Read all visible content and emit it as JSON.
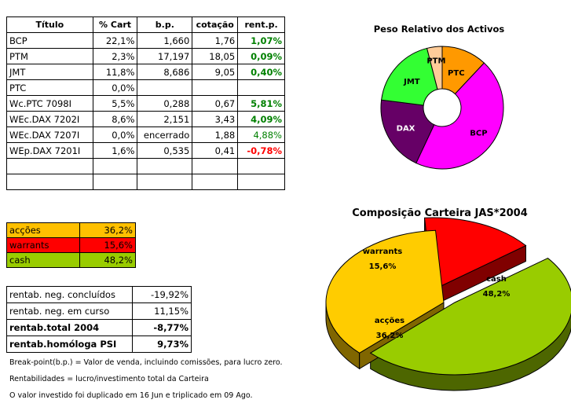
{
  "holdings": {
    "headers": [
      "Título",
      "% Cart",
      "b.p.",
      "cotação",
      "rent.p."
    ],
    "rows": [
      {
        "titulo": "BCP",
        "cart": "22,1%",
        "bp": "1,660",
        "cotacao": "1,76",
        "rent": "1,07%",
        "rent_style": "pos-bold"
      },
      {
        "titulo": "PTM",
        "cart": "2,3%",
        "bp": "17,197",
        "cotacao": "18,05",
        "rent": "0,09%",
        "rent_style": "pos-bold"
      },
      {
        "titulo": "JMT",
        "cart": "11,8%",
        "bp": "8,686",
        "cotacao": "9,05",
        "rent": "0,40%",
        "rent_style": "pos-bold"
      },
      {
        "titulo": "PTC",
        "cart": "0,0%",
        "bp": "",
        "cotacao": "",
        "rent": "",
        "rent_style": ""
      },
      {
        "titulo": "Wc.PTC 7098I",
        "cart": "5,5%",
        "bp": "0,288",
        "cotacao": "0,67",
        "rent": "5,81%",
        "rent_style": "pos-bold"
      },
      {
        "titulo": "WEc.DAX 7202I",
        "cart": "8,6%",
        "bp": "2,151",
        "cotacao": "3,43",
        "rent": "4,09%",
        "rent_style": "pos-bold"
      },
      {
        "titulo": "WEc.DAX 7207I",
        "cart": "0,0%",
        "bp": "encerrado",
        "cotacao": "1,88",
        "rent": "4,88%",
        "rent_style": "pos"
      },
      {
        "titulo": "WEp.DAX 7201I",
        "cart": "1,6%",
        "bp": "0,535",
        "cotacao": "0,41",
        "rent": "-0,78%",
        "rent_style": "neg"
      }
    ]
  },
  "allocation": [
    {
      "label": "acções",
      "value": "36,2%",
      "color": "#ffc000"
    },
    {
      "label": "warrants",
      "value": "15,6%",
      "color": "#ff0000"
    },
    {
      "label": "cash",
      "value": "48,2%",
      "color": "#99cc00"
    }
  ],
  "summary": [
    {
      "label": "rentab. neg. concluídos",
      "value": "-19,92%",
      "bold": false
    },
    {
      "label": "rentab. neg. em curso",
      "value": "11,15%",
      "bold": false
    },
    {
      "label": "rentab.total 2004",
      "value": "-8,77%",
      "bold": true
    },
    {
      "label": "rentab.homóloga PSI",
      "value": "9,73%",
      "bold": true
    }
  ],
  "notes": {
    "breakpoint": "Break-point(b.p.) = Valor de venda, incluindo comissões, para lucro zero.",
    "rentabilidades": "Rentabilidades = lucro/investimento total da Carteira",
    "investimento": "O valor investido foi duplicado em 16 Jun e triplicado em 09 Ago."
  },
  "chart_data": [
    {
      "type": "pie",
      "variant": "donut",
      "title": "Peso Relativo dos Activos",
      "categories": [
        "PTC",
        "BCP",
        "DAX",
        "JMT",
        "PTM"
      ],
      "values": [
        12,
        45,
        20,
        19,
        4
      ],
      "colors": [
        "#ff9900",
        "#ff00ff",
        "#660066",
        "#33ff33",
        "#ffcc99"
      ],
      "labels_shown": [
        "PTC",
        "BCP",
        "DAX",
        "JMT",
        "PTM"
      ]
    },
    {
      "type": "pie",
      "variant": "3d-exploded",
      "title": "Composição Carteira JAS*2004",
      "categories": [
        "warrants",
        "cash",
        "acções"
      ],
      "values": [
        15.6,
        48.2,
        36.2
      ],
      "value_labels": [
        "15,6%",
        "48,2%",
        "36,2%"
      ],
      "colors": [
        "#ff0000",
        "#99cc00",
        "#ffcc00"
      ],
      "side_colors": [
        "#800000",
        "#4d6600",
        "#806600"
      ]
    }
  ]
}
